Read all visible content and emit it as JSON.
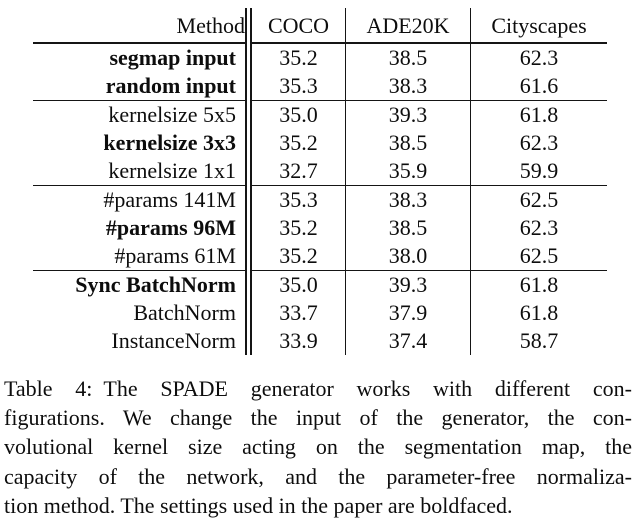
{
  "table": {
    "columns": [
      "Method",
      "COCO",
      "ADE20K",
      "Cityscapes"
    ],
    "rows": [
      {
        "method": "segmap input",
        "bold": true,
        "values": [
          "35.2",
          "38.5",
          "62.3"
        ],
        "group_end": false
      },
      {
        "method": "random input",
        "bold": true,
        "values": [
          "35.3",
          "38.3",
          "61.6"
        ],
        "group_end": true
      },
      {
        "method": "kernelsize 5x5",
        "bold": false,
        "values": [
          "35.0",
          "39.3",
          "61.8"
        ],
        "group_end": false
      },
      {
        "method": "kernelsize 3x3",
        "bold": true,
        "values": [
          "35.2",
          "38.5",
          "62.3"
        ],
        "group_end": false
      },
      {
        "method": "kernelsize 1x1",
        "bold": false,
        "values": [
          "32.7",
          "35.9",
          "59.9"
        ],
        "group_end": true
      },
      {
        "method": "#params 141M",
        "bold": false,
        "values": [
          "35.3",
          "38.3",
          "62.5"
        ],
        "group_end": false
      },
      {
        "method": "#params 96M",
        "bold": true,
        "values": [
          "35.2",
          "38.5",
          "62.3"
        ],
        "group_end": false
      },
      {
        "method": "#params 61M",
        "bold": false,
        "values": [
          "35.2",
          "38.0",
          "62.5"
        ],
        "group_end": true
      },
      {
        "method": "Sync BatchNorm",
        "bold": true,
        "values": [
          "35.0",
          "39.3",
          "61.8"
        ],
        "group_end": false
      },
      {
        "method": "BatchNorm",
        "bold": false,
        "values": [
          "33.7",
          "37.9",
          "61.8"
        ],
        "group_end": false
      },
      {
        "method": "InstanceNorm",
        "bold": false,
        "values": [
          "33.9",
          "37.4",
          "58.7"
        ],
        "group_end": false
      }
    ]
  },
  "caption": {
    "label": "Table 4:",
    "lines": [
      "Table 4: The SPADE generator works with different con-",
      "figurations. We change the input of the generator, the con-",
      "volutional kernel size acting on the segmentation map, the",
      "capacity of the network, and the parameter-free normaliza-",
      "tion method. The settings used in the paper are boldfaced."
    ],
    "full_text": "Table 4: The SPADE generator works with different configurations. We change the input of the generator, the convolutional kernel size acting on the segmentation map, the capacity of the network, and the parameter-free normalization method. The settings used in the paper are boldfaced."
  },
  "colors": {
    "text": "#0d0d0d",
    "rule": "#151515",
    "background": "#ffffff"
  }
}
